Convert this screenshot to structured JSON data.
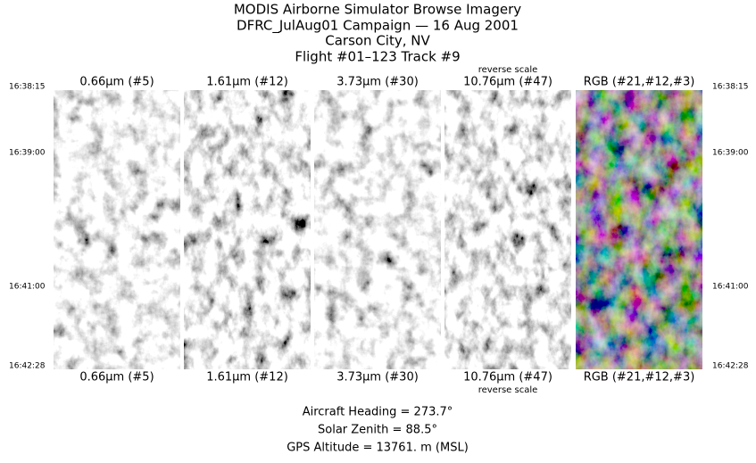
{
  "header": {
    "lines": [
      "MODIS Airborne Simulator Browse Imagery",
      "DFRC_JulAug01 Campaign — 16 Aug 2001",
      "Carson City, NV",
      "Flight #01–123 Track #9"
    ]
  },
  "times": [
    "16:38:15",
    "16:39:00",
    "16:41:00",
    "16:42:28"
  ],
  "panels": [
    {
      "label": "0.66μm (#5)"
    },
    {
      "label": "1.61μm (#12)"
    },
    {
      "label": "3.73μm (#30)"
    },
    {
      "label": "10.76μm (#47)",
      "note": "reverse scale"
    },
    {
      "label": "RGB (#21,#12,#3)"
    }
  ],
  "footer": {
    "lines": [
      "Aircraft Heading =  273.7°",
      "Solar Zenith =   88.5°",
      "GPS Altitude =  13761. m (MSL)"
    ]
  }
}
